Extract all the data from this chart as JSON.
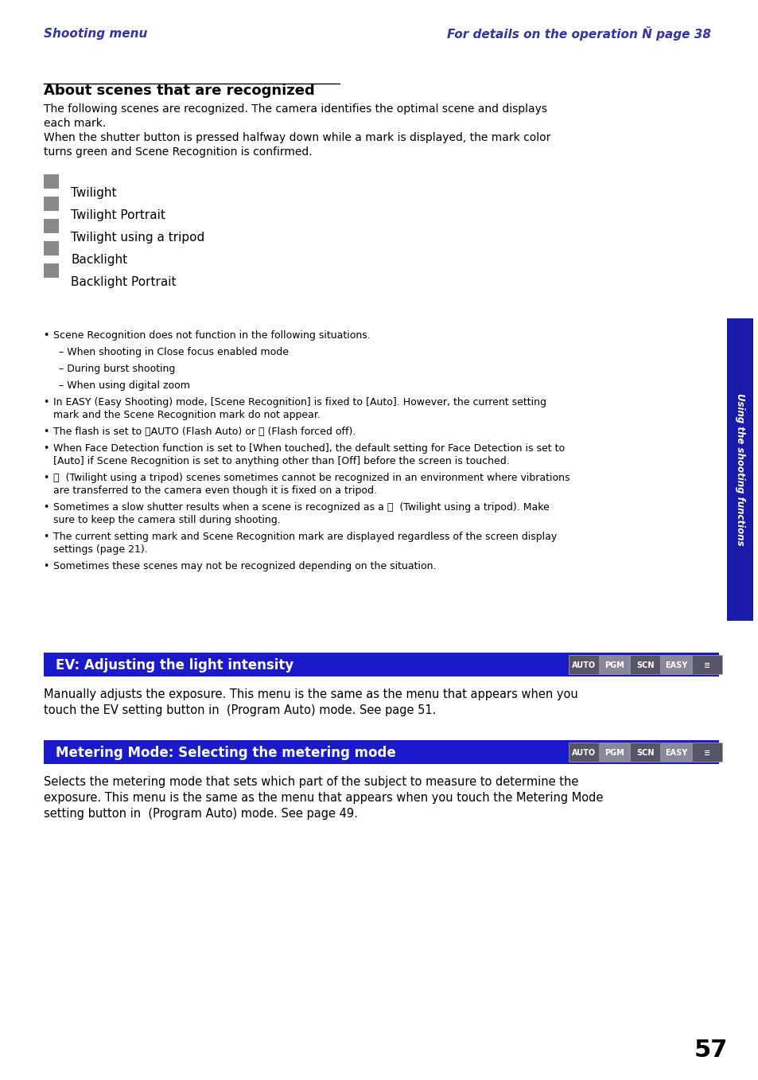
{
  "page_bg": "#ffffff",
  "header_left": "Shooting menu",
  "header_right": "For details on the operation Ň page 38",
  "header_color": "#3333aa",
  "sidebar_color": "#1a1aaa",
  "sidebar_text": "Using the shooting functions",
  "section1_title": "About scenes that are recognized",
  "section1_body1": "The following scenes are recognized. The camera identifies the optimal scene and displays\neach mark.\nWhen the shutter button is pressed halfway down while a mark is displayed, the mark color\nturns green and Scene Recognition is confirmed.",
  "scene_items": [
    "Twilight",
    "Twilight Portrait",
    "Twilight using a tripod",
    "Backlight",
    "Backlight Portrait"
  ],
  "bullets": [
    "Scene Recognition does not function in the following situations.",
    "In EASY (Easy Shooting) mode, [Scene Recognition] is fixed to [Auto]. However, the current setting\nmark and the Scene Recognition mark do not appear.",
    "The flash is set to ⓐAUTO (Flash Auto) or ⓐ (Flash forced off).",
    "When Face Detection function is set to [When touched], the default setting for Face Detection is set to\n[Auto] if Scene Recognition is set to anything other than [Off] before the screen is touched.",
    "ⓐ  (Twilight using a tripod) scenes sometimes cannot be recognized in an environment where vibrations\nare transferred to the camera even though it is fixed on a tripod.",
    "Sometimes a slow shutter results when a scene is recognized as a ⓐ  (Twilight using a tripod). Make\nsure to keep the camera still during shooting.",
    "The current setting mark and Scene Recognition mark are displayed regardless of the screen display\nsettings (page 21).",
    "Sometimes these scenes may not be recognized depending on the situation."
  ],
  "sub_bullets": [
    "– When shooting in Close focus enabled mode",
    "– During burst shooting",
    "– When using digital zoom"
  ],
  "ev_bar_color": "#1a1acc",
  "ev_bar_text": "EV: Adjusting the light intensity",
  "ev_body": "Manually adjusts the exposure. This menu is the same as the menu that appears when you\ntouch the EV setting button in  (Program Auto) mode. See page 51.",
  "meter_bar_color": "#1a1acc",
  "meter_bar_text": "Metering Mode: Selecting the metering mode",
  "meter_body": "Selects the metering mode that sets which part of the subject to measure to determine the\nexposure. This menu is the same as the menu that appears when you touch the Metering Mode\nsetting button in  (Program Auto) mode. See page 49.",
  "page_number": "57",
  "mode_tags": [
    "AUTO",
    "PGM",
    "SCN",
    "EASY",
    "≡"
  ],
  "mode_tag_colors": [
    "#ffffff",
    "#aaaaaa",
    "#ffffff",
    "#aaaaaa",
    "#ffffff"
  ],
  "mode_tag_bg": [
    "#555555",
    "#888888",
    "#555555",
    "#888888",
    "#444444"
  ]
}
